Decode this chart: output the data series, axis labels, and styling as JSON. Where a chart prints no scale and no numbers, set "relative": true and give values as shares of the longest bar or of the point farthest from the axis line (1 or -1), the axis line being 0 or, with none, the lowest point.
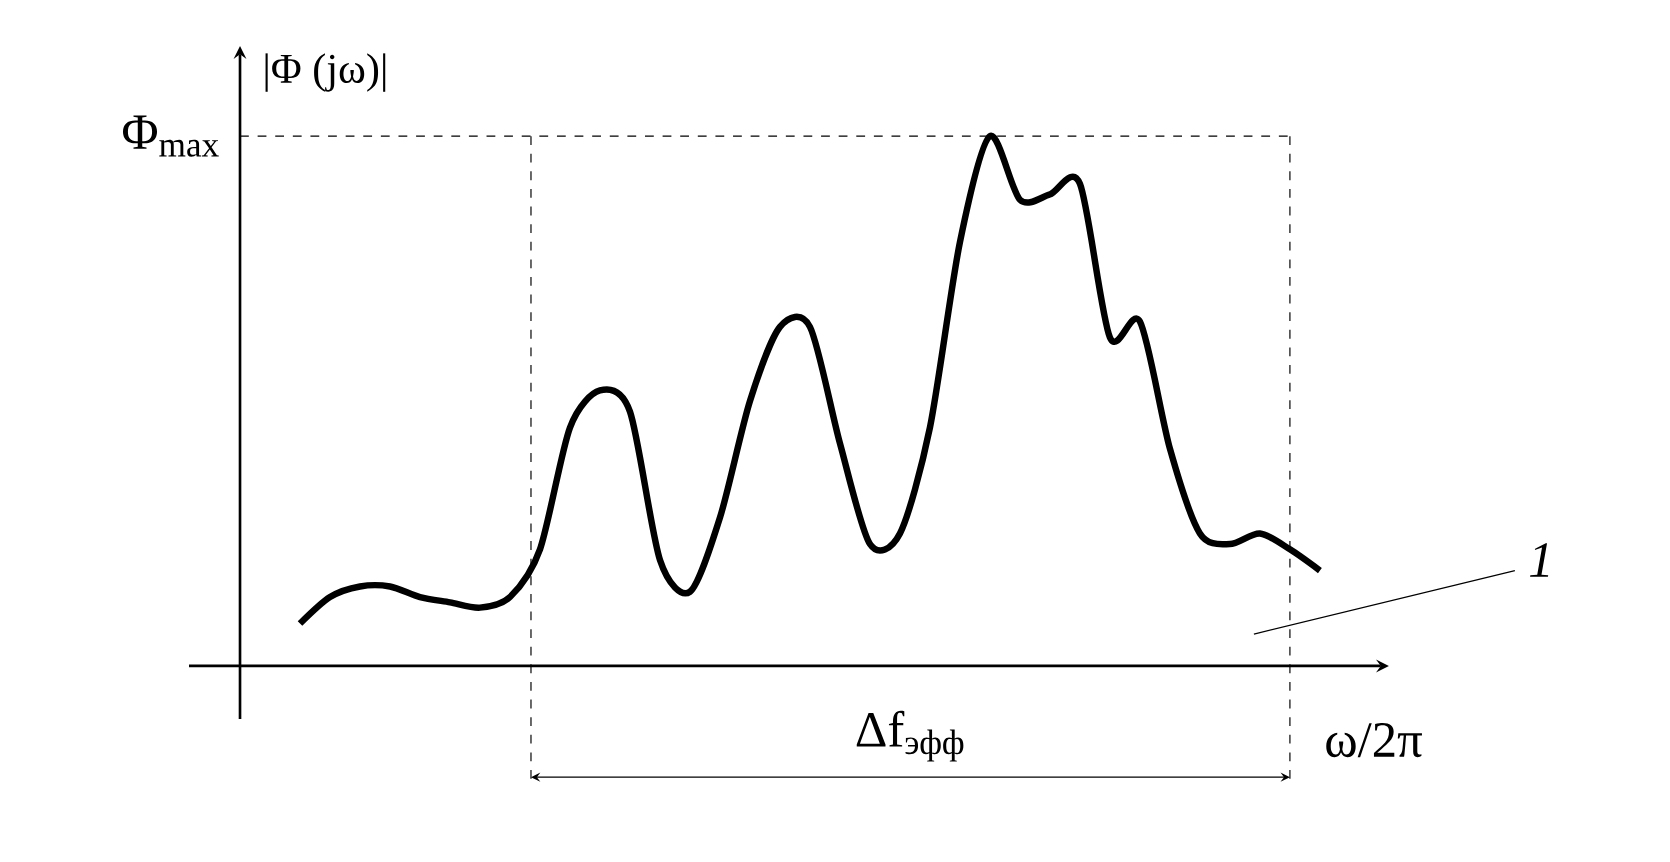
{
  "chart_data": {
    "type": "line",
    "relative": true,
    "ylabel": "|Φ (jω)|",
    "xlabel": "ω/2π",
    "categories": [
      null,
      null,
      null,
      null,
      null,
      null,
      null,
      null,
      null,
      null,
      null,
      null,
      null,
      null,
      null,
      null,
      null,
      null,
      null,
      null,
      null,
      null,
      null,
      null,
      null,
      null,
      null,
      null,
      null,
      null,
      null,
      null,
      null,
      null,
      null
    ],
    "series": [
      {
        "name": "1",
        "color": "#000000",
        "values": [
          0.08,
          0.13,
          0.15,
          0.15,
          0.13,
          0.12,
          0.11,
          0.13,
          0.22,
          0.45,
          0.52,
          0.48,
          0.2,
          0.14,
          0.28,
          0.5,
          0.64,
          0.64,
          0.42,
          0.23,
          0.25,
          0.45,
          0.8,
          1.0,
          0.88,
          0.89,
          0.91,
          0.62,
          0.65,
          0.41,
          0.25,
          0.23,
          0.25,
          0.22,
          0.18
        ]
      }
    ],
    "annotations": [
      "Φ$_{max}$",
      "Δf$_{эфф}$"
    ]
  }
}
